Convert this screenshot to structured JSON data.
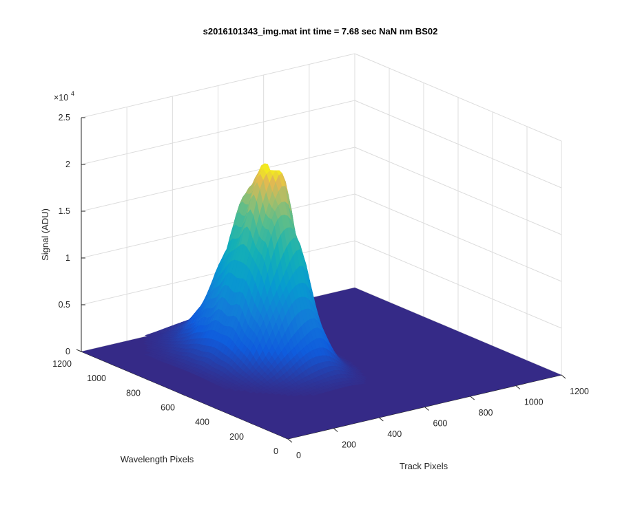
{
  "chart_data": {
    "type": "surface",
    "title": "s2016101343_img.mat int time = 7.68 sec  NaN nm BS02",
    "xlabel": "Track Pixels",
    "ylabel": "Wavelength Pixels",
    "zlabel": "Signal (ADU)",
    "z_exponent_label": "×10",
    "z_exponent_power": "4",
    "x_ticks": [
      "0",
      "200",
      "400",
      "600",
      "800",
      "1000",
      "1200"
    ],
    "y_ticks": [
      "0",
      "200",
      "400",
      "600",
      "800",
      "1000",
      "1200"
    ],
    "z_ticks": [
      "0",
      "0.5",
      "1",
      "1.5",
      "2",
      "2.5"
    ],
    "xlim": [
      0,
      1200
    ],
    "ylim": [
      0,
      1200
    ],
    "zlim": [
      0,
      25000
    ],
    "grid": true,
    "colormap": "parula",
    "peak": {
      "track_pixel": 500,
      "wavelength_pixel": 760,
      "signal": 20500
    },
    "secondary_bump": {
      "track_pixel": 100,
      "wavelength_pixel": 1000,
      "signal": 800
    },
    "floor_signal": 0
  }
}
